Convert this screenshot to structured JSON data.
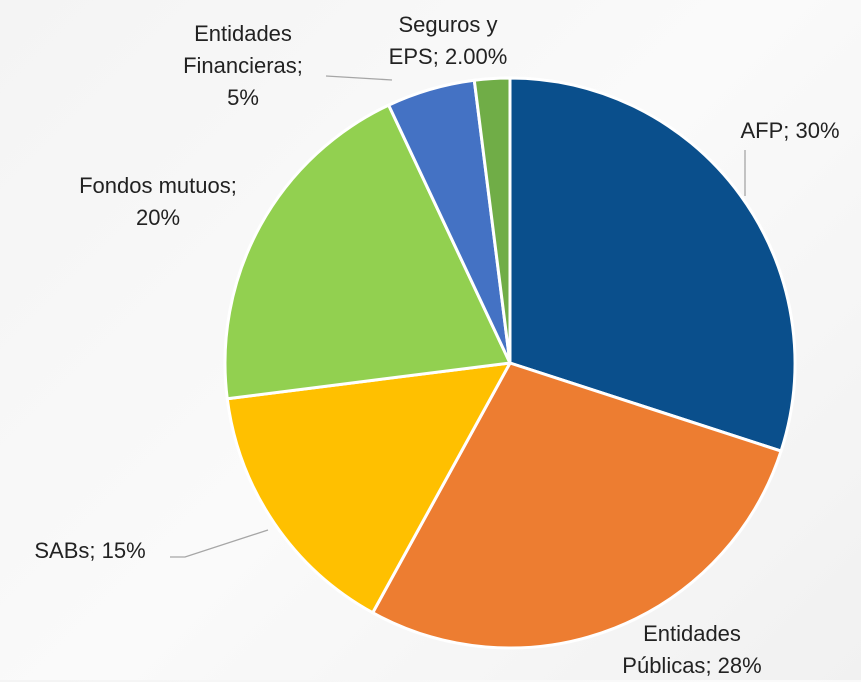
{
  "chart_data": {
    "type": "pie",
    "categories": [
      "AFP",
      "Entidades Públicas",
      "SABs",
      "Fondos mutuos",
      "Entidades Financieras",
      "Seguros y EPS"
    ],
    "values": [
      30,
      28,
      15,
      20,
      5,
      2
    ],
    "value_labels": [
      "30%",
      "28%",
      "15%",
      "20%",
      "5%",
      "2.00%"
    ],
    "label_separator": "; ",
    "colors": [
      "#0a4f8c",
      "#ed7d31",
      "#ffc000",
      "#92d050",
      "#4472c4",
      "#70ad47"
    ]
  }
}
